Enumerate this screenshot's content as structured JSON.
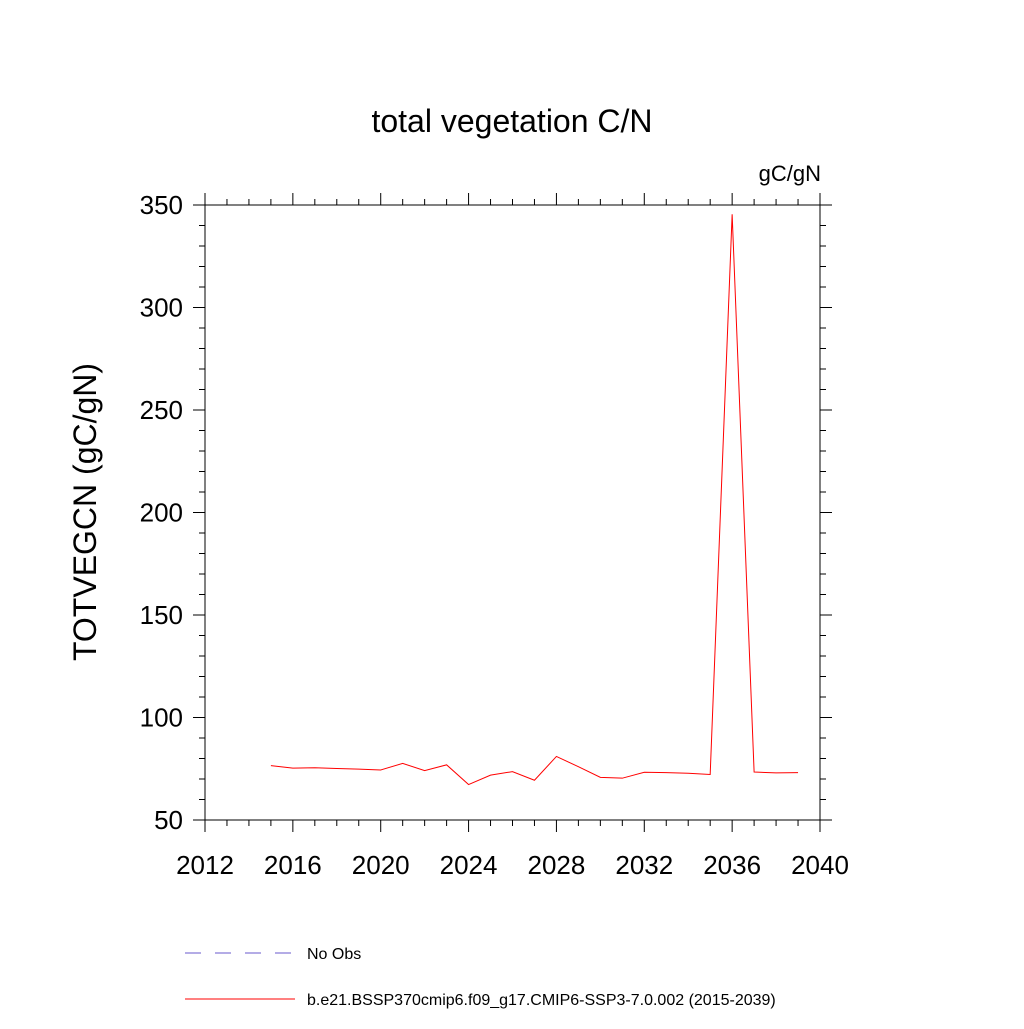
{
  "chart_data": {
    "type": "line",
    "title": "total vegetation C/N",
    "units_label": "gC/gN",
    "ylabel": "TOTVEGCN  (gC/gN)",
    "xlabel": "",
    "xlim": [
      2012,
      2040
    ],
    "ylim": [
      50,
      350
    ],
    "x_ticks": [
      2012,
      2016,
      2020,
      2024,
      2028,
      2032,
      2036,
      2040
    ],
    "x_tick_labels": [
      "2012",
      "2016",
      "2020",
      "2024",
      "2028",
      "2032",
      "2036",
      "2040"
    ],
    "y_ticks": [
      50,
      100,
      150,
      200,
      250,
      300,
      350
    ],
    "y_tick_labels": [
      "50",
      "100",
      "150",
      "200",
      "250",
      "300",
      "350"
    ],
    "grid": false,
    "legend_position": "bottom",
    "series": [
      {
        "name": "b.e21.BSSP370cmip6.f09_g17.CMIP6-SSP3-7.0.002 (2015-2039)",
        "color": "#ff0000",
        "style": "solid",
        "x": [
          2015,
          2016,
          2017,
          2018,
          2019,
          2020,
          2021,
          2022,
          2023,
          2024,
          2025,
          2026,
          2027,
          2028,
          2029,
          2030,
          2031,
          2032,
          2033,
          2034,
          2035,
          2036,
          2037,
          2038,
          2039
        ],
        "y": [
          76.5,
          75.3,
          75.5,
          75.1,
          74.8,
          74.4,
          77.6,
          74.1,
          76.9,
          67.3,
          71.9,
          73.6,
          69.4,
          81.0,
          76.0,
          70.8,
          70.4,
          73.3,
          73.1,
          72.8,
          72.2,
          345.5,
          73.4,
          73.0,
          73.1
        ]
      }
    ],
    "legend": [
      {
        "label": "No Obs",
        "color": "#6a5acd",
        "style": "dashed"
      },
      {
        "label": "b.e21.BSSP370cmip6.f09_g17.CMIP6-SSP3-7.0.002 (2015-2039)",
        "color": "#ff0000",
        "style": "solid"
      }
    ]
  }
}
